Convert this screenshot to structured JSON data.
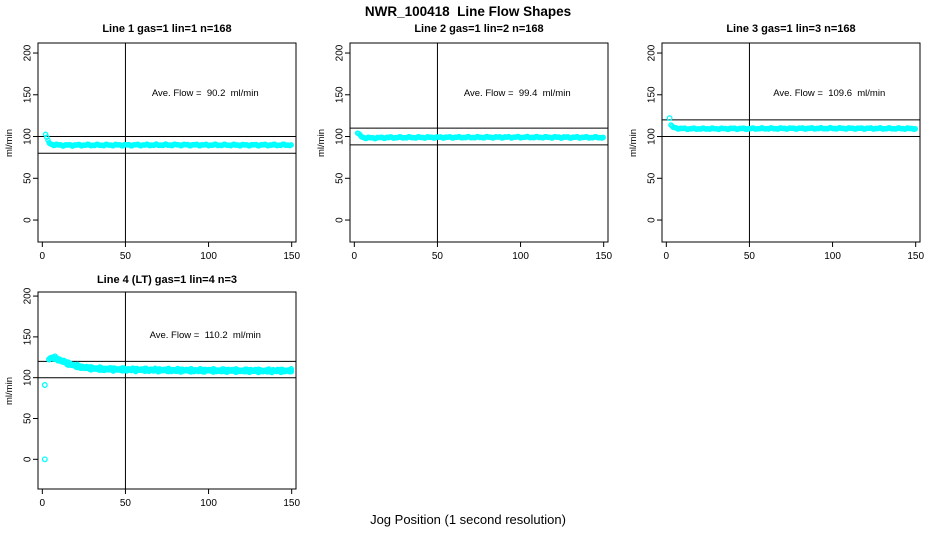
{
  "figure": {
    "title": "NWR_100418  Line Flow Shapes",
    "xlabel": "Jog Position (1 second resolution)",
    "background": "#FFFFFF",
    "point_color": "#00FFFF",
    "line_color": "#000000",
    "marker": "open-circle"
  },
  "chart_data": [
    {
      "type": "scatter",
      "title": "Line 1 gas=1 lin=1 n=168",
      "annotation": "Ave. Flow =  90.2  ml/min",
      "ave_flow": 90.2,
      "n": 168,
      "ylabel": "ml/min",
      "x_ticks": [
        0,
        50,
        100,
        150
      ],
      "y_ticks": [
        0,
        50,
        100,
        150,
        200
      ],
      "xlim": [
        -2.6,
        152.6
      ],
      "ylim": [
        -26.3,
        212
      ],
      "vline_x": 50,
      "hlines": [
        100,
        80
      ],
      "grid": false,
      "keypoints": [
        [
          2,
          103
        ],
        [
          2.6,
          99
        ],
        [
          3.2,
          95.5
        ],
        [
          4,
          92.5
        ],
        [
          5,
          91
        ],
        [
          7,
          90.2
        ],
        [
          10,
          89.7
        ],
        [
          15,
          89.6
        ],
        [
          25,
          89.8
        ],
        [
          50,
          89.8
        ],
        [
          80,
          90
        ],
        [
          120,
          89.8
        ],
        [
          150,
          89.9
        ]
      ],
      "outliers": [],
      "noise": 1.1,
      "x_start": 2,
      "x_end": 150,
      "step": 0.7,
      "passes": 1
    },
    {
      "type": "scatter",
      "title": "Line 2 gas=1 lin=2 n=168",
      "annotation": "Ave. Flow =  99.4  ml/min",
      "ave_flow": 99.4,
      "n": 168,
      "ylabel": "ml/min",
      "x_ticks": [
        0,
        50,
        100,
        150
      ],
      "y_ticks": [
        0,
        50,
        100,
        150,
        200
      ],
      "xlim": [
        -2.6,
        152.6
      ],
      "ylim": [
        -26.3,
        212
      ],
      "vline_x": 50,
      "hlines": [
        110,
        90
      ],
      "grid": false,
      "keypoints": [
        [
          2,
          104.5
        ],
        [
          2.6,
          103
        ],
        [
          3.5,
          101
        ],
        [
          4.5,
          99.5
        ],
        [
          6,
          98.6
        ],
        [
          10,
          98.3
        ],
        [
          20,
          98.8
        ],
        [
          50,
          99
        ],
        [
          100,
          99.2
        ],
        [
          150,
          98.9
        ]
      ],
      "outliers": [],
      "noise": 1.0,
      "x_start": 2,
      "x_end": 150,
      "step": 0.7,
      "passes": 1
    },
    {
      "type": "scatter",
      "title": "Line 3 gas=1 lin=3 n=168",
      "annotation": "Ave. Flow =  109.6  ml/min",
      "ave_flow": 109.6,
      "n": 168,
      "ylabel": "ml/min",
      "x_ticks": [
        0,
        50,
        100,
        150
      ],
      "y_ticks": [
        0,
        50,
        100,
        150,
        200
      ],
      "xlim": [
        -2.6,
        152.6
      ],
      "ylim": [
        -26.3,
        212
      ],
      "vline_x": 50,
      "hlines": [
        120,
        100
      ],
      "grid": false,
      "keypoints": [
        [
          2,
          122
        ],
        [
          2.8,
          113.5
        ],
        [
          4,
          111
        ],
        [
          6,
          110
        ],
        [
          10,
          109.4
        ],
        [
          20,
          109.3
        ],
        [
          50,
          109.5
        ],
        [
          100,
          109.8
        ],
        [
          150,
          109.5
        ]
      ],
      "outliers": [
        [
          2,
          122
        ]
      ],
      "noise": 0.9,
      "x_start": 2.8,
      "x_end": 150,
      "step": 0.7,
      "passes": 1
    },
    {
      "type": "scatter",
      "title": "Line 4 (LT) gas=1 lin=4 n=3",
      "annotation": "Ave. Flow =  110.2  ml/min",
      "ave_flow": 110.2,
      "n": 3,
      "ylabel": "ml/min",
      "x_ticks": [
        0,
        50,
        100,
        150
      ],
      "y_ticks": [
        0,
        50,
        100,
        150,
        200
      ],
      "xlim": [
        -2.6,
        152.6
      ],
      "ylim": [
        -36.4,
        205
      ],
      "vline_x": 50,
      "hlines": [
        120,
        100
      ],
      "grid": false,
      "keypoints": [
        [
          4,
          123
        ],
        [
          6,
          124.5
        ],
        [
          8,
          124
        ],
        [
          10,
          122
        ],
        [
          13,
          119.5
        ],
        [
          16,
          117
        ],
        [
          20,
          114.5
        ],
        [
          25,
          112.5
        ],
        [
          30,
          111.5
        ],
        [
          38,
          110.5
        ],
        [
          50,
          110
        ],
        [
          65,
          109.5
        ],
        [
          85,
          109
        ],
        [
          110,
          108.8
        ],
        [
          135,
          108.5
        ],
        [
          150,
          108.6
        ]
      ],
      "outliers": [
        [
          1.5,
          91
        ],
        [
          1.5,
          0
        ]
      ],
      "noise": 1.5,
      "x_start": 4,
      "x_end": 150,
      "step": 0.9,
      "passes": 3
    }
  ]
}
